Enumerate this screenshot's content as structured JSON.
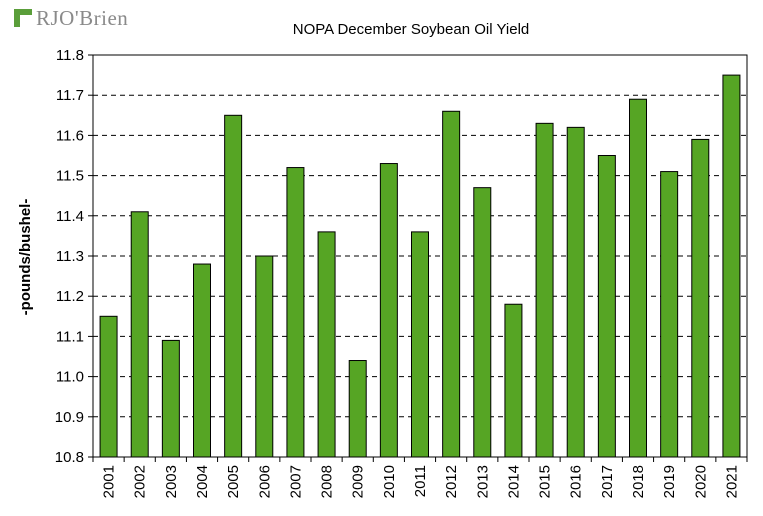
{
  "brand": {
    "name": "RJO'Brien"
  },
  "colors": {
    "bar_fill": "#56a524",
    "bar_stroke": "#000000",
    "grid": "#000000"
  },
  "chart_data": {
    "type": "bar",
    "title": "NOPA December Soybean Oil Yield",
    "xlabel": "",
    "ylabel": "-pounds/bushel-",
    "ylim": [
      10.8,
      11.8
    ],
    "ytick_step": 0.1,
    "ytick_labels": [
      "10.8",
      "10.9",
      "11.0",
      "11.1",
      "11.2",
      "11.3",
      "11.4",
      "11.5",
      "11.6",
      "11.7",
      "11.8"
    ],
    "grid": true,
    "categories": [
      "2001",
      "2002",
      "2003",
      "2004",
      "2005",
      "2006",
      "2007",
      "2008",
      "2009",
      "2010",
      "2011",
      "2012",
      "2013",
      "2014",
      "2015",
      "2016",
      "2017",
      "2018",
      "2019",
      "2020",
      "2021"
    ],
    "values": [
      11.15,
      11.41,
      11.09,
      11.28,
      11.65,
      11.3,
      11.52,
      11.36,
      11.04,
      11.53,
      11.36,
      11.66,
      11.47,
      11.18,
      11.63,
      11.62,
      11.55,
      11.69,
      11.51,
      11.59,
      11.75
    ]
  }
}
